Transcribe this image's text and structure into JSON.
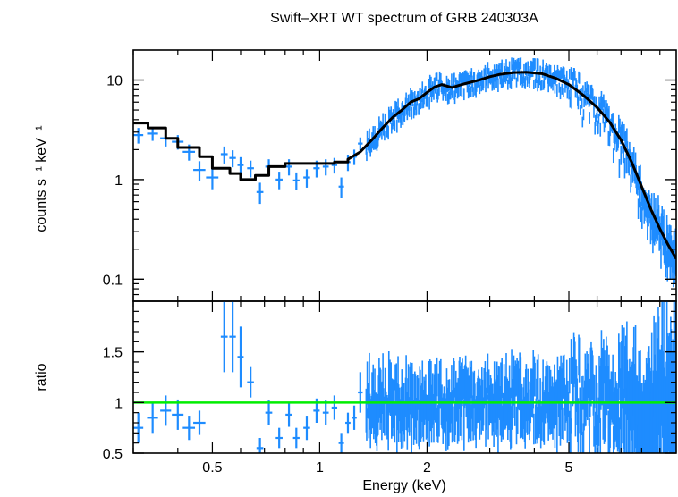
{
  "chart_data": [
    {
      "type": "scatter",
      "panel": "spectrum",
      "title": "Swift–XRT WT spectrum of GRB 240303A",
      "ylabel": "counts s⁻¹ keV⁻¹",
      "xlabel": "",
      "x_scale": "log",
      "y_scale": "log",
      "xlim": [
        0.3,
        10
      ],
      "ylim": [
        0.06,
        20
      ],
      "y_ticks": [
        {
          "value": 0.1,
          "label": "0.1"
        },
        {
          "value": 1,
          "label": "1"
        },
        {
          "value": 10,
          "label": "10"
        }
      ],
      "colors": {
        "data": "#1e8cff",
        "model": "#000000"
      },
      "series": [
        {
          "style": "crosses",
          "points": [
            [
              0.31,
              2.8,
              0.01,
              0.5
            ],
            [
              0.34,
              2.9,
              0.012,
              0.45
            ],
            [
              0.37,
              2.6,
              0.013,
              0.45
            ],
            [
              0.4,
              2.4,
              0.015,
              0.4
            ],
            [
              0.43,
              1.9,
              0.017,
              0.35
            ],
            [
              0.46,
              1.25,
              0.018,
              0.28
            ],
            [
              0.5,
              1.05,
              0.02,
              0.25
            ],
            [
              0.54,
              1.8,
              0.012,
              0.35
            ],
            [
              0.57,
              1.65,
              0.012,
              0.32
            ],
            [
              0.6,
              1.4,
              0.012,
              0.28
            ],
            [
              0.64,
              1.3,
              0.014,
              0.25
            ],
            [
              0.68,
              0.75,
              0.015,
              0.18
            ],
            [
              0.72,
              1.35,
              0.016,
              0.25
            ],
            [
              0.77,
              1.0,
              0.017,
              0.2
            ],
            [
              0.82,
              1.35,
              0.018,
              0.25
            ],
            [
              0.86,
              0.98,
              0.018,
              0.2
            ],
            [
              0.92,
              1.05,
              0.02,
              0.22
            ],
            [
              0.98,
              1.3,
              0.02,
              0.25
            ],
            [
              1.04,
              1.35,
              0.02,
              0.25
            ],
            [
              1.1,
              1.4,
              0.02,
              0.25
            ],
            [
              1.15,
              0.85,
              0.02,
              0.2
            ],
            [
              1.2,
              1.5,
              0.02,
              0.28
            ],
            [
              1.25,
              1.7,
              0.02,
              0.3
            ],
            [
              1.3,
              2.3,
              0.02,
              0.35
            ]
          ]
        }
      ],
      "model": [
        [
          0.3,
          3.7
        ],
        [
          0.33,
          3.3
        ],
        [
          0.37,
          2.6
        ],
        [
          0.4,
          2.1
        ],
        [
          0.46,
          1.7
        ],
        [
          0.5,
          1.3
        ],
        [
          0.56,
          1.15
        ],
        [
          0.6,
          1.0
        ],
        [
          0.66,
          1.1
        ],
        [
          0.72,
          1.35
        ],
        [
          0.8,
          1.45
        ],
        [
          0.9,
          1.45
        ],
        [
          1.0,
          1.45
        ],
        [
          1.1,
          1.5
        ],
        [
          1.2,
          1.6
        ],
        [
          1.3,
          1.9
        ],
        [
          1.4,
          2.5
        ],
        [
          1.5,
          3.3
        ],
        [
          1.6,
          4.2
        ],
        [
          1.7,
          5.0
        ],
        [
          1.8,
          6.0
        ],
        [
          1.9,
          6.5
        ],
        [
          2.0,
          7.5
        ],
        [
          2.1,
          8.5
        ],
        [
          2.2,
          9.0
        ],
        [
          2.35,
          8.4
        ],
        [
          2.5,
          9.0
        ],
        [
          2.8,
          10.0
        ],
        [
          3.0,
          10.8
        ],
        [
          3.2,
          11.4
        ],
        [
          3.5,
          11.9
        ],
        [
          3.8,
          12.0
        ],
        [
          4.2,
          11.6
        ],
        [
          4.6,
          10.4
        ],
        [
          5.0,
          9.0
        ],
        [
          5.5,
          7.0
        ],
        [
          6.0,
          5.3
        ],
        [
          6.5,
          3.8
        ],
        [
          7.0,
          2.5
        ],
        [
          7.5,
          1.5
        ],
        [
          8.0,
          0.85
        ],
        [
          8.5,
          0.5
        ],
        [
          9.0,
          0.32
        ],
        [
          9.5,
          0.22
        ],
        [
          10.0,
          0.16
        ]
      ]
    },
    {
      "type": "scatter",
      "panel": "ratio",
      "title": "",
      "xlabel": "Energy (keV)",
      "ylabel": "ratio",
      "x_scale": "log",
      "y_scale": "linear",
      "xlim": [
        0.3,
        10
      ],
      "ylim": [
        0.5,
        2.0
      ],
      "x_ticks": [
        {
          "value": 0.5,
          "label": "0.5"
        },
        {
          "value": 1,
          "label": "1"
        },
        {
          "value": 2,
          "label": "2"
        },
        {
          "value": 5,
          "label": "5"
        }
      ],
      "y_ticks": [
        {
          "value": 0.5,
          "label": "0.5"
        },
        {
          "value": 1,
          "label": "1"
        },
        {
          "value": 1.5,
          "label": "1.5"
        }
      ],
      "reference_line": 1.0,
      "colors": {
        "data": "#1e8cff",
        "reference": "#00ee00"
      },
      "series": [
        {
          "style": "crosses",
          "points": [
            [
              0.31,
              0.75,
              0.01,
              0.15
            ],
            [
              0.34,
              0.85,
              0.012,
              0.15
            ],
            [
              0.37,
              0.92,
              0.013,
              0.15
            ],
            [
              0.4,
              0.88,
              0.015,
              0.15
            ],
            [
              0.43,
              0.75,
              0.017,
              0.12
            ],
            [
              0.46,
              0.8,
              0.018,
              0.12
            ],
            [
              0.54,
              1.65,
              0.012,
              0.35
            ],
            [
              0.57,
              1.65,
              0.012,
              0.35
            ],
            [
              0.6,
              1.45,
              0.012,
              0.3
            ],
            [
              0.64,
              1.2,
              0.014,
              0.15
            ],
            [
              0.68,
              0.55,
              0.015,
              0.1
            ],
            [
              0.72,
              0.9,
              0.016,
              0.12
            ],
            [
              0.77,
              0.65,
              0.017,
              0.1
            ],
            [
              0.82,
              0.88,
              0.018,
              0.12
            ],
            [
              0.86,
              0.65,
              0.018,
              0.1
            ],
            [
              0.92,
              0.75,
              0.02,
              0.12
            ],
            [
              0.98,
              0.92,
              0.02,
              0.12
            ],
            [
              1.04,
              0.9,
              0.02,
              0.12
            ],
            [
              1.1,
              0.95,
              0.02,
              0.12
            ],
            [
              1.15,
              0.6,
              0.02,
              0.1
            ],
            [
              1.2,
              0.8,
              0.02,
              0.1
            ],
            [
              1.25,
              0.85,
              0.02,
              0.12
            ],
            [
              1.3,
              1.1,
              0.02,
              0.2
            ]
          ]
        }
      ]
    }
  ]
}
